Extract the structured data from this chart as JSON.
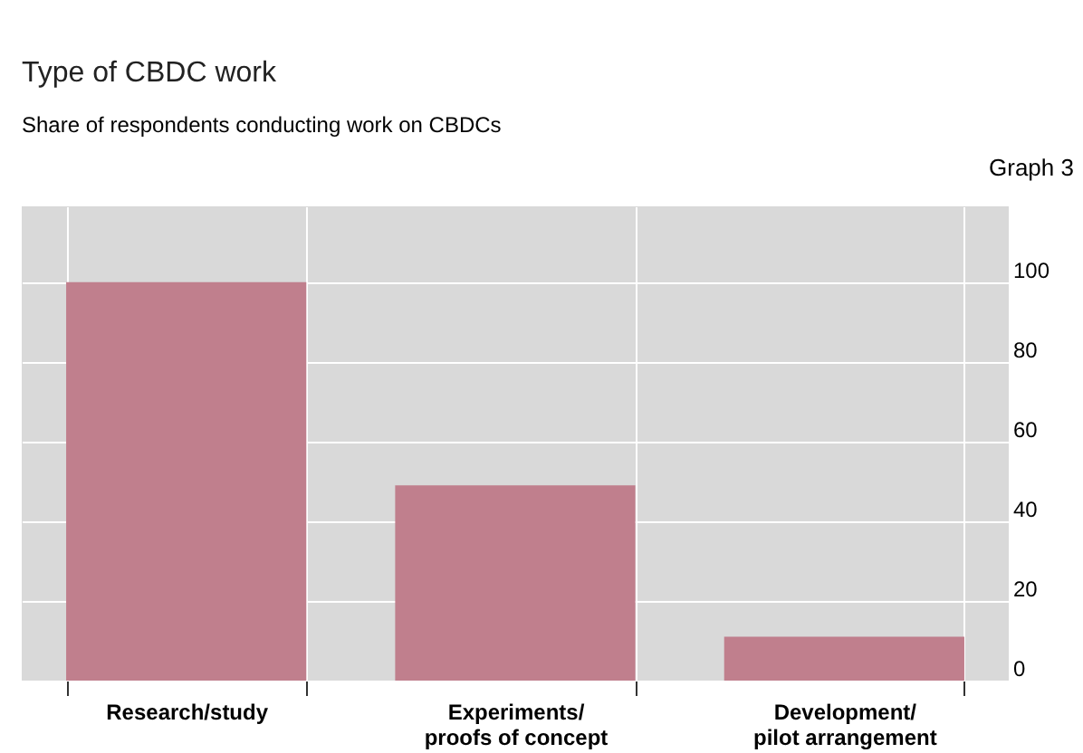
{
  "chart_data": {
    "type": "bar",
    "title": "Type of CBDC work",
    "subtitle": "Share of respondents conducting work on CBDCs",
    "annotations": [
      "Graph 3"
    ],
    "categories": [
      "Research/study",
      "Experiments/\nproofs of concept",
      "Development/\npilot arrangement"
    ],
    "values": [
      100,
      49,
      11
    ],
    "color": "#c07f8d",
    "ylim": [
      0,
      119
    ],
    "yticks": [
      0,
      20,
      40,
      60,
      80,
      100
    ],
    "grid": true
  }
}
